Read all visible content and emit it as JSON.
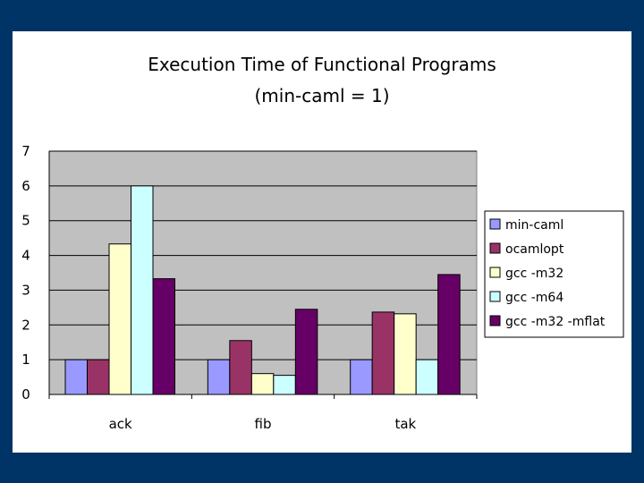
{
  "chart_data": {
    "type": "bar",
    "title": "Execution Time of Functional Programs",
    "subtitle": "(min-caml = 1)",
    "xlabel": "",
    "ylabel": "",
    "categories": [
      "ack",
      "fib",
      "tak"
    ],
    "ylim": [
      0,
      7
    ],
    "yticks": [
      0,
      1,
      2,
      3,
      4,
      5,
      6,
      7
    ],
    "grid": true,
    "legend_position": "right",
    "series": [
      {
        "name": "min-caml",
        "color": "#9999ff",
        "values": [
          1,
          1,
          1
        ]
      },
      {
        "name": "ocamlopt",
        "color": "#993366",
        "values": [
          1,
          1.55,
          2.37
        ]
      },
      {
        "name": "gcc -m32",
        "color": "#ffffcc",
        "values": [
          4.33,
          0.6,
          2.32
        ]
      },
      {
        "name": "gcc -m64",
        "color": "#ccffff",
        "values": [
          6,
          0.55,
          1
        ]
      },
      {
        "name": "gcc -m32 -mflat",
        "color": "#660066",
        "values": [
          3.33,
          2.45,
          3.45
        ]
      }
    ],
    "plot_background": "#c0c0c0"
  }
}
